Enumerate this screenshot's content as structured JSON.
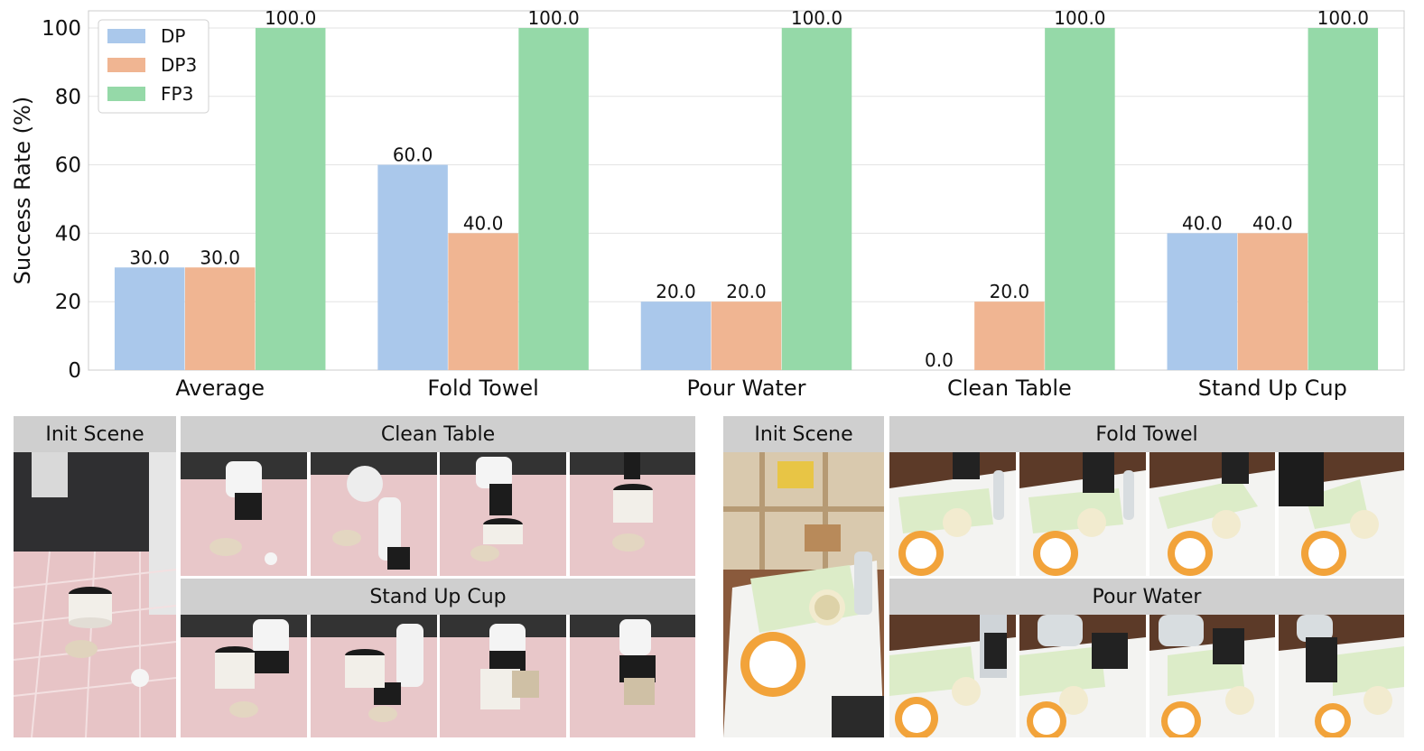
{
  "chart_data": {
    "type": "bar",
    "categories": [
      "Average",
      "Fold Towel",
      "Pour Water",
      "Clean Table",
      "Stand Up Cup"
    ],
    "series": [
      {
        "name": "DP",
        "color": "#aac8eb",
        "values": [
          30.0,
          60.0,
          20.0,
          0.0,
          40.0
        ]
      },
      {
        "name": "DP3",
        "color": "#f0b592",
        "values": [
          30.0,
          40.0,
          20.0,
          20.0,
          40.0
        ]
      },
      {
        "name": "FP3",
        "color": "#95d9a8",
        "values": [
          100.0,
          100.0,
          100.0,
          100.0,
          100.0
        ]
      }
    ],
    "ylabel": "Success Rate (%)",
    "xlabel": "",
    "ylim": [
      0,
      105
    ],
    "yticks": [
      0,
      20,
      40,
      60,
      80,
      100
    ],
    "grid": true,
    "legend_position": "top-left",
    "value_labels": true
  },
  "panels": {
    "left": {
      "init_title": "Init Scene",
      "task1_title": "Clean Table",
      "task2_title": "Stand Up Cup"
    },
    "right": {
      "init_title": "Init Scene",
      "task1_title": "Fold Towel",
      "task2_title": "Pour Water"
    }
  }
}
